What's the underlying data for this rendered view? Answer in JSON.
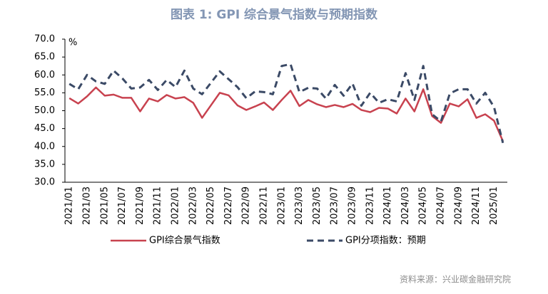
{
  "chart_data": {
    "type": "line",
    "title": "图表 1:  GPI 综合景气指数与预期指数",
    "y_unit": "%",
    "source": "资料来源：兴业碳金融研究院",
    "categories": [
      "2021/01",
      null,
      "2021/03",
      null,
      "2021/05",
      null,
      "2021/07",
      null,
      "2021/09",
      null,
      "2021/11",
      null,
      "2022/01",
      null,
      "2022/03",
      null,
      "2022/05",
      null,
      "2022/07",
      null,
      "2022/09",
      null,
      "2022/11",
      null,
      "2023/01",
      null,
      "2023/03",
      null,
      "2023/05",
      null,
      "2023/07",
      null,
      "2023/09",
      null,
      "2023/11",
      null,
      "2024/01",
      null,
      "2024/03",
      null,
      "2024/05",
      null,
      "2024/07",
      null,
      "2024/09",
      null,
      "2024/11",
      null,
      "2025/01",
      null
    ],
    "series": [
      {
        "name": "GPI综合景气指数",
        "color": "#c8424f",
        "dash": false,
        "values": [
          53.5,
          52,
          54,
          56.5,
          54.2,
          54.5,
          53.6,
          53.6,
          49.8,
          53.4,
          52.6,
          54.4,
          53.4,
          53.8,
          52.2,
          48,
          51.5,
          55,
          54.3,
          51.5,
          50.2,
          51.2,
          52.3,
          50.2,
          53,
          55.6,
          51.3,
          53,
          51.8,
          51,
          51.6,
          51,
          51.9,
          50.2,
          49.6,
          50.8,
          50.6,
          49.2,
          53.4,
          49.8,
          56,
          48.5,
          46.6,
          52,
          51.2,
          53.2,
          48,
          49,
          47.2,
          41.5
        ]
      },
      {
        "name": "GPI分项指数：预期",
        "color": "#3b4a66",
        "dash": true,
        "values": [
          57.5,
          56,
          60,
          58.2,
          57.5,
          61.2,
          59,
          56.2,
          56.5,
          58.6,
          55.8,
          58.6,
          56.6,
          61.2,
          56.2,
          54.6,
          57.8,
          61,
          58.8,
          56.6,
          53.5,
          55.4,
          55.2,
          54.6,
          62.5,
          63,
          55.2,
          56.4,
          56.2,
          53.4,
          57.2,
          54.2,
          57.6,
          51.4,
          55,
          52.2,
          53.2,
          52.6,
          60.5,
          53,
          62.5,
          49,
          47,
          54.8,
          56,
          56,
          52,
          55,
          51,
          41
        ]
      }
    ],
    "ylim": [
      30,
      70
    ],
    "yticks": [
      {
        "value": 30,
        "label": "30.0"
      },
      {
        "value": 35,
        "label": "35.0"
      },
      {
        "value": 40,
        "label": "40.0"
      },
      {
        "value": 45,
        "label": "45.0"
      },
      {
        "value": 50,
        "label": "50.0"
      },
      {
        "value": 55,
        "label": "55.0"
      },
      {
        "value": 60,
        "label": "60.0"
      },
      {
        "value": 65,
        "label": "65.0"
      },
      {
        "value": 70,
        "label": "70.0"
      }
    ],
    "grid": false,
    "legend": "bottom"
  }
}
